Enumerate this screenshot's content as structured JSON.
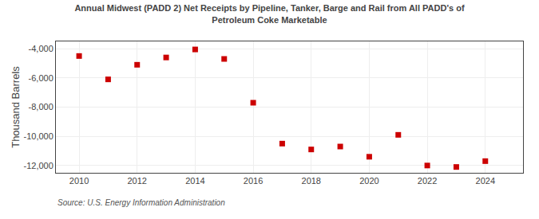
{
  "chart_data": {
    "type": "scatter",
    "title": "Annual Midwest (PADD 2) Net Receipts by Pipeline, Tanker, Barge and Rail from All PADD's of\nPetroleum Coke Marketable",
    "ylabel": "Thousand Barrels",
    "source": "Source: U.S. Energy Information Administration",
    "x": [
      2010,
      2011,
      2012,
      2013,
      2014,
      2015,
      2016,
      2017,
      2018,
      2019,
      2020,
      2021,
      2022,
      2023,
      2024
    ],
    "values": [
      -4500,
      -6100,
      -5100,
      -4600,
      -4050,
      -4700,
      -7700,
      -10500,
      -10900,
      -10700,
      -11400,
      -9900,
      -12000,
      -12100,
      -11700
    ],
    "color": "#cc0000",
    "marker": "square",
    "xlim": [
      2009.2,
      2025.3
    ],
    "xticks": [
      2010,
      2012,
      2014,
      2016,
      2018,
      2020,
      2022,
      2024
    ],
    "ylim": [
      -12500,
      -3500
    ],
    "yticks": [
      {
        "value": -12000,
        "label": "-12,000"
      },
      {
        "value": -10000,
        "label": "-10,000"
      },
      {
        "value": -8000,
        "label": "-8,000"
      },
      {
        "value": -6000,
        "label": "-6,000"
      },
      {
        "value": -4000,
        "label": "-4,000"
      }
    ],
    "grid": true
  }
}
